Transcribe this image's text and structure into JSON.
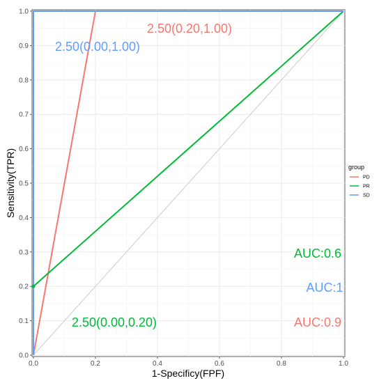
{
  "chart_data": {
    "type": "line",
    "xlabel": "1-Specificy(FPF)",
    "ylabel": "Sensitivity(TPR)",
    "xlim": [
      0,
      1
    ],
    "ylim": [
      0,
      1
    ],
    "x_ticks": [
      "0.0",
      "0.2",
      "0.4",
      "0.6",
      "0.8",
      "1.0"
    ],
    "y_ticks": [
      "0.0",
      "0.1",
      "0.2",
      "0.3",
      "0.4",
      "0.5",
      "0.6",
      "0.7",
      "0.8",
      "0.9",
      "1.0"
    ],
    "grid": true,
    "legend": {
      "title": "group",
      "placement": "right",
      "entries": [
        {
          "label": "PD",
          "color": "#F8766D"
        },
        {
          "label": "PR",
          "color": "#00BA38"
        },
        {
          "label": "SD",
          "color": "#619CFF"
        }
      ]
    },
    "series": [
      {
        "name": "PD",
        "color": "#F8766D",
        "points": [
          [
            0,
            0
          ],
          [
            0.2,
            1.0
          ],
          [
            1.0,
            1.0
          ]
        ]
      },
      {
        "name": "PR",
        "color": "#00BA38",
        "points": [
          [
            0,
            0
          ],
          [
            0,
            0.2
          ],
          [
            1.0,
            1.0
          ]
        ]
      },
      {
        "name": "SD",
        "color": "#619CFF",
        "points": [
          [
            0,
            0
          ],
          [
            0,
            1.0
          ],
          [
            1.0,
            1.0
          ]
        ]
      }
    ],
    "reference_line": {
      "points": [
        [
          0,
          0
        ],
        [
          1,
          1
        ]
      ],
      "color": "#cccccc"
    },
    "annotations": [
      {
        "text": "2.50(0.20,1.00)",
        "color": "#F8766D",
        "kind": "threshold"
      },
      {
        "text": "2.50(0.00,1.00)",
        "color": "#619CFF",
        "kind": "threshold"
      },
      {
        "text": "2.50(0.00,0.20)",
        "color": "#00BA38",
        "kind": "threshold"
      },
      {
        "text": "AUC:0.6",
        "color": "#00BA38",
        "kind": "auc"
      },
      {
        "text": "AUC:1",
        "color": "#619CFF",
        "kind": "auc"
      },
      {
        "text": "AUC:0.9",
        "color": "#F8766D",
        "kind": "auc"
      }
    ]
  }
}
